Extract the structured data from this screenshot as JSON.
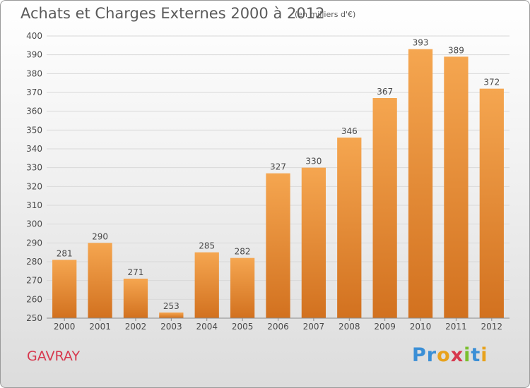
{
  "title": "Achats et Charges Externes 2000 à 2012",
  "subtitle": "(en milliers d'€)",
  "commune": "GAVRAY",
  "brand": {
    "text": "Proxiti",
    "letter_colors": [
      "#3b8fd6",
      "#3b8fd6",
      "#e8a21d",
      "#d7384e",
      "#7bbf2e",
      "#3b8fd6",
      "#e8a21d"
    ]
  },
  "colors": {
    "bar_top": "#f5a650",
    "bar_bottom": "#d2711f",
    "grid": "#d9d9d9",
    "axis_text": "#4a4a4a"
  },
  "chart_data": {
    "type": "bar",
    "categories": [
      "2000",
      "2001",
      "2002",
      "2003",
      "2004",
      "2005",
      "2006",
      "2007",
      "2008",
      "2009",
      "2010",
      "2011",
      "2012"
    ],
    "values": [
      281,
      290,
      271,
      253,
      285,
      282,
      327,
      330,
      346,
      367,
      393,
      389,
      372
    ],
    "ylim": [
      250,
      400
    ],
    "yticks": [
      250,
      260,
      270,
      280,
      290,
      300,
      310,
      320,
      330,
      340,
      350,
      360,
      370,
      380,
      390,
      400
    ],
    "grid": true,
    "legend": "none"
  }
}
